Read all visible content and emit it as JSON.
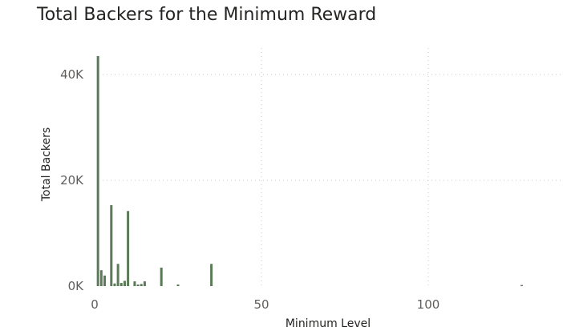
{
  "chart_data": {
    "type": "bar",
    "title": "Total Backers for the Minimum Reward",
    "xlabel": "Minimum Level",
    "ylabel": "Total Backers",
    "xlim": [
      0,
      140
    ],
    "ylim": [
      0,
      45000
    ],
    "x_ticks": [
      0,
      50,
      100
    ],
    "x_tick_labels": [
      "0",
      "50",
      "100"
    ],
    "y_ticks": [
      0,
      20000,
      40000
    ],
    "y_tick_labels": [
      "0K",
      "20K",
      "40K"
    ],
    "grid": true,
    "bar_color": "#5b7a57",
    "x": [
      1,
      2,
      3,
      5,
      6,
      7,
      8,
      9,
      10,
      12,
      13,
      14,
      15,
      20,
      25,
      35,
      128
    ],
    "values": [
      43500,
      3000,
      2000,
      15300,
      500,
      4200,
      600,
      1000,
      14200,
      900,
      300,
      400,
      900,
      3500,
      300,
      4200,
      200
    ]
  }
}
